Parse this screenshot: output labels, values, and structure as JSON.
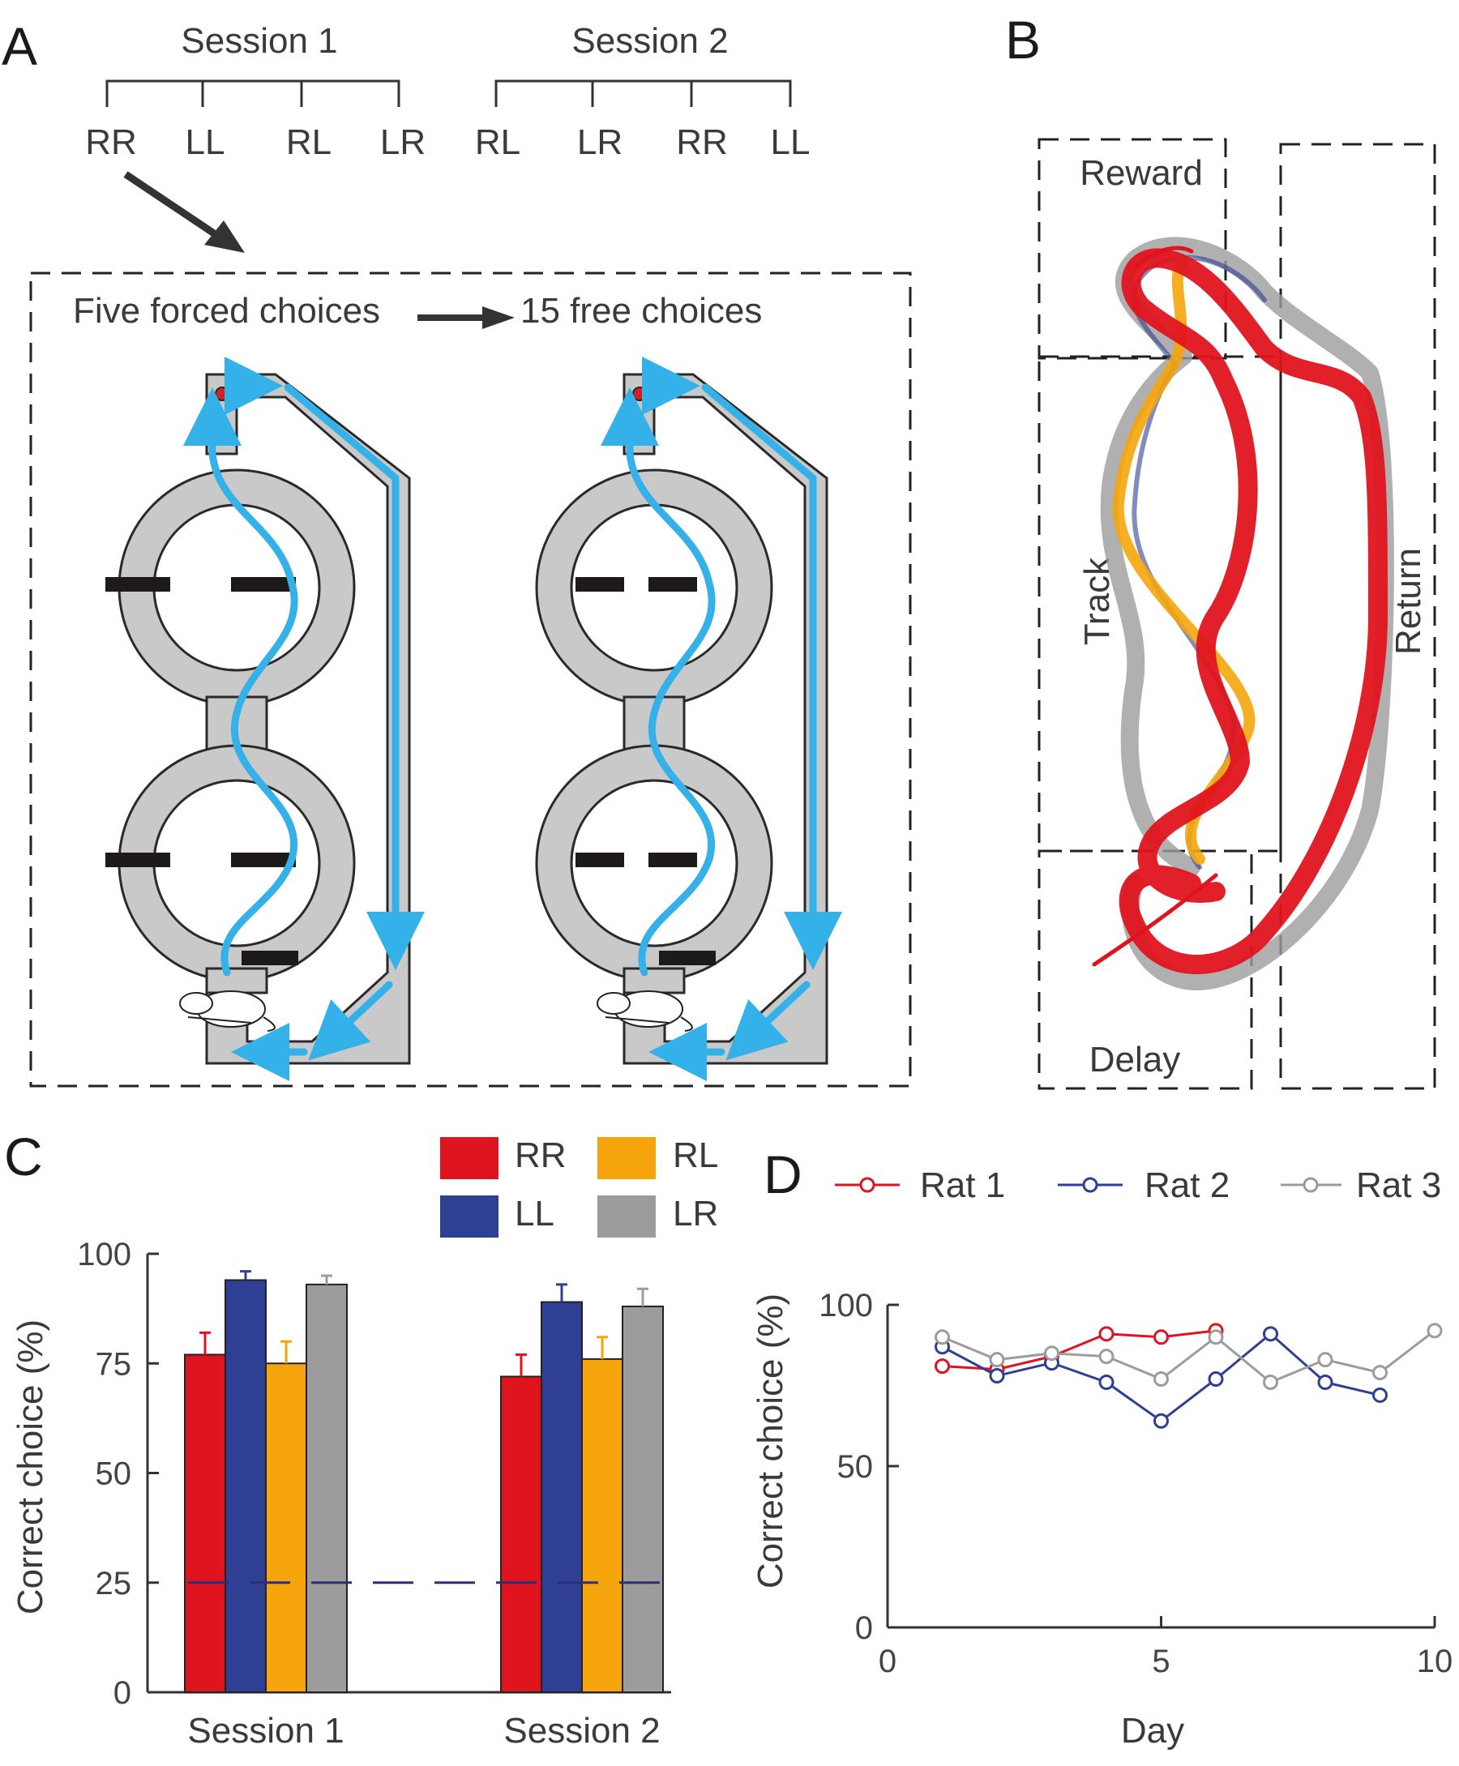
{
  "panels": {
    "A": {
      "letter": "A",
      "session1": {
        "title": "Session 1",
        "orders": [
          "RR",
          "LL",
          "RL",
          "LR"
        ]
      },
      "session2": {
        "title": "Session 2",
        "orders": [
          "RL",
          "LR",
          "RR",
          "LL"
        ]
      },
      "forced_label": "Five forced choices",
      "free_label": "15 free choices"
    },
    "B": {
      "letter": "B",
      "regions": {
        "reward": "Reward",
        "track": "Track",
        "return": "Return",
        "delay": "Delay"
      }
    },
    "C": {
      "letter": "C"
    },
    "D": {
      "letter": "D"
    }
  },
  "colors": {
    "RR": "#e0141e",
    "LL": "#2e3f94",
    "RL": "#f5a50b",
    "LR": "#9c9c9c",
    "chance_line": "#2a2f78",
    "maze_path": "#35b1ea"
  },
  "chart_data": [
    {
      "type": "bar",
      "panel": "C",
      "categories": [
        "Session 1",
        "Session 2"
      ],
      "series": [
        {
          "name": "RR",
          "values": [
            77,
            72
          ],
          "errors": [
            5,
            5
          ]
        },
        {
          "name": "LL",
          "values": [
            94,
            89
          ],
          "errors": [
            2,
            4
          ]
        },
        {
          "name": "RL",
          "values": [
            75,
            76
          ],
          "errors": [
            5,
            5
          ]
        },
        {
          "name": "LR",
          "values": [
            93,
            88
          ],
          "errors": [
            2,
            4
          ]
        }
      ],
      "chance_level": 25,
      "ylabel": "Correct choice (%)",
      "ylim": [
        0,
        100
      ],
      "yticks": [
        0,
        25,
        50,
        75,
        100
      ],
      "legend_placement": "top"
    },
    {
      "type": "line",
      "panel": "D",
      "series": [
        {
          "name": "Rat 1",
          "x": [
            1,
            2,
            3,
            4,
            5,
            6
          ],
          "values": [
            81,
            80,
            84,
            91,
            90,
            92
          ]
        },
        {
          "name": "Rat 2",
          "x": [
            1,
            2,
            3,
            4,
            5,
            6,
            7,
            8,
            9
          ],
          "values": [
            87,
            78,
            82,
            76,
            64,
            77,
            91,
            76,
            72
          ]
        },
        {
          "name": "Rat 3",
          "x": [
            1,
            2,
            3,
            4,
            5,
            6,
            7,
            8,
            9,
            10
          ],
          "values": [
            90,
            83,
            85,
            84,
            77,
            90,
            76,
            83,
            79,
            92
          ]
        }
      ],
      "xlabel": "Day",
      "ylabel": "Correct choice (%)",
      "xlim": [
        0,
        10
      ],
      "ylim": [
        0,
        100
      ],
      "xticks": [
        0,
        5,
        10
      ],
      "yticks": [
        0,
        50,
        100
      ],
      "legend_placement": "top"
    }
  ]
}
